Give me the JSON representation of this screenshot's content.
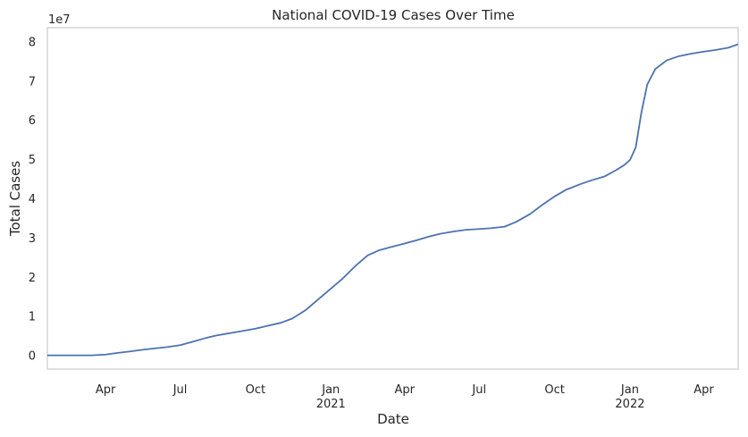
{
  "chart_data": {
    "type": "line",
    "title": "National COVID-19 Cases Over Time",
    "xlabel": "Date",
    "ylabel": "Total Cases",
    "y_offset_label": "1e7",
    "ylim": [
      -0.35,
      8.35
    ],
    "xlim": [
      "2020-01-21",
      "2022-05-13"
    ],
    "grid": false,
    "legend": "none",
    "line_color": "#4c72b0",
    "y_ticks": [
      0,
      1,
      2,
      3,
      4,
      5,
      6,
      7,
      8
    ],
    "y_tick_labels": [
      "0",
      "1",
      "2",
      "3",
      "4",
      "5",
      "6",
      "7",
      "8"
    ],
    "x_ticks": [
      {
        "date": "2020-04-01",
        "label": "Apr",
        "year": ""
      },
      {
        "date": "2020-07-01",
        "label": "Jul",
        "year": ""
      },
      {
        "date": "2020-10-01",
        "label": "Oct",
        "year": ""
      },
      {
        "date": "2021-01-01",
        "label": "Jan",
        "year": "2021"
      },
      {
        "date": "2021-04-01",
        "label": "Apr",
        "year": ""
      },
      {
        "date": "2021-07-01",
        "label": "Jul",
        "year": ""
      },
      {
        "date": "2021-10-01",
        "label": "Oct",
        "year": ""
      },
      {
        "date": "2022-01-01",
        "label": "Jan",
        "year": "2022"
      },
      {
        "date": "2022-04-01",
        "label": "Apr",
        "year": ""
      }
    ],
    "series": [
      {
        "x": [
          "2020-01-21",
          "2020-02-15",
          "2020-03-15",
          "2020-04-01",
          "2020-04-15",
          "2020-05-01",
          "2020-05-15",
          "2020-06-01",
          "2020-06-15",
          "2020-07-01",
          "2020-07-15",
          "2020-08-01",
          "2020-08-15",
          "2020-09-01",
          "2020-09-15",
          "2020-10-01",
          "2020-10-15",
          "2020-11-01",
          "2020-11-15",
          "2020-12-01",
          "2020-12-15",
          "2021-01-01",
          "2021-01-15",
          "2021-02-01",
          "2021-02-15",
          "2021-03-01",
          "2021-03-15",
          "2021-04-01",
          "2021-04-15",
          "2021-05-01",
          "2021-05-15",
          "2021-06-01",
          "2021-06-15",
          "2021-07-01",
          "2021-07-15",
          "2021-08-01",
          "2021-08-15",
          "2021-09-01",
          "2021-09-15",
          "2021-10-01",
          "2021-10-15",
          "2021-11-01",
          "2021-11-15",
          "2021-12-01",
          "2021-12-15",
          "2021-12-25",
          "2022-01-01",
          "2022-01-08",
          "2022-01-15",
          "2022-01-22",
          "2022-02-01",
          "2022-02-15",
          "2022-03-01",
          "2022-03-15",
          "2022-04-01",
          "2022-04-15",
          "2022-05-01",
          "2022-05-13"
        ],
        "y": [
          0,
          0,
          0,
          0.02,
          0.06,
          0.1,
          0.14,
          0.18,
          0.21,
          0.26,
          0.34,
          0.44,
          0.51,
          0.57,
          0.62,
          0.68,
          0.75,
          0.83,
          0.94,
          1.15,
          1.4,
          1.7,
          1.95,
          2.3,
          2.55,
          2.68,
          2.76,
          2.85,
          2.93,
          3.03,
          3.1,
          3.16,
          3.2,
          3.22,
          3.24,
          3.28,
          3.4,
          3.6,
          3.82,
          4.05,
          4.22,
          4.36,
          4.46,
          4.56,
          4.72,
          4.85,
          4.98,
          5.3,
          6.2,
          6.9,
          7.3,
          7.52,
          7.62,
          7.68,
          7.74,
          7.78,
          7.84,
          7.93
        ]
      }
    ]
  }
}
